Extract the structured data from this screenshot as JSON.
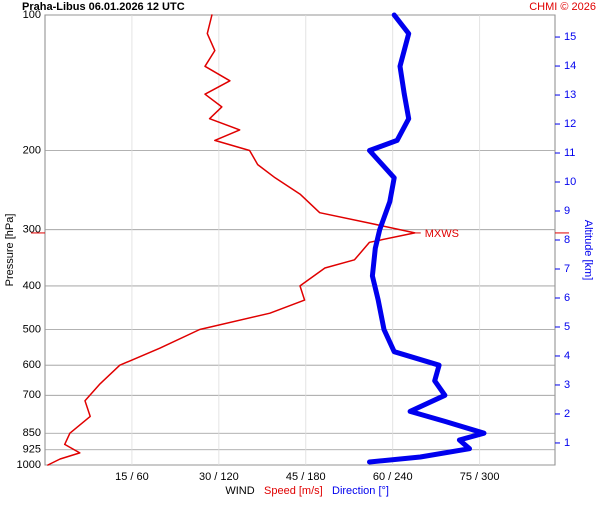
{
  "chart_data": {
    "type": "sounding",
    "title": "Praha-Libus    06.01.2026 12 UTC",
    "credit": "CHMI © 2026",
    "y_label": "Pressure [hPa]",
    "y2_label": "Altitude [km]",
    "x_label": "WIND",
    "ylim": [
      1000,
      100
    ],
    "ylog": true,
    "yticks": [
      100,
      200,
      300,
      400,
      500,
      600,
      700,
      850,
      925,
      1000
    ],
    "y2lim": [
      0.24,
      15.76
    ],
    "y2ticks": [
      1,
      2,
      3,
      4,
      5,
      6,
      7,
      8,
      9,
      10,
      11,
      12,
      13,
      14,
      15
    ],
    "xlim": [
      0,
      88
    ],
    "x2lim": [
      0,
      352
    ],
    "xticks": [
      {
        "value": 15,
        "label": "15 / 60"
      },
      {
        "value": 30,
        "label": "30 / 120"
      },
      {
        "value": 45,
        "label": "45 / 180"
      },
      {
        "value": 60,
        "label": "60 / 240"
      },
      {
        "value": 75,
        "label": "75 / 300"
      }
    ],
    "grid": true,
    "series": [
      {
        "name": "Speed [m/s]",
        "color": "#e00000",
        "axis": "x",
        "pressure": [
          100,
          110,
          120,
          130,
          140,
          150,
          160,
          170,
          180,
          190,
          200,
          215,
          230,
          250,
          275,
          290,
          305,
          320,
          350,
          365,
          400,
          430,
          460,
          500,
          550,
          600,
          660,
          720,
          780,
          850,
          900,
          940,
          970,
          1000
        ],
        "values": [
          28.8,
          28,
          29.3,
          27.6,
          31.9,
          27.6,
          30.5,
          28.4,
          33.6,
          29.3,
          35.3,
          36.7,
          39.7,
          44,
          47.4,
          56,
          63.8,
          56,
          53.4,
          48.3,
          44,
          44.8,
          38.8,
          26.7,
          19.8,
          12.9,
          9.5,
          6.9,
          7.8,
          4.3,
          3.4,
          6,
          2.6,
          0.5
        ]
      },
      {
        "name": "Direction [°]",
        "color": "#0000ee",
        "axis": "x2",
        "pressure": [
          100,
          110,
          130,
          150,
          170,
          190,
          200,
          230,
          260,
          300,
          330,
          380,
          430,
          500,
          560,
          600,
          650,
          700,
          760,
          800,
          850,
          880,
          920,
          960,
          985
        ],
        "values": [
          241,
          251,
          245,
          248,
          251,
          243,
          224,
          241,
          238,
          231,
          228,
          226,
          230,
          234,
          241,
          272,
          269,
          276,
          252,
          276,
          303,
          286,
          293,
          259,
          224
        ]
      }
    ],
    "mxws": {
      "label": "MXWS",
      "pressure": 305,
      "value": 63.8
    }
  }
}
